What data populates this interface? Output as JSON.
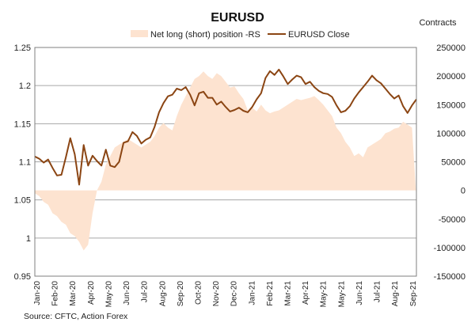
{
  "chart_data": {
    "type": "area+line",
    "title": "EURUSD",
    "right_axis_label": "Contracts",
    "source": "Source: CFTC, Action Forex",
    "legend": [
      {
        "name": "Net long (short) position -RS",
        "kind": "area",
        "color": "#fde3d0"
      },
      {
        "name": "EURUSD Close",
        "kind": "line",
        "color": "#8b4513"
      }
    ],
    "left_axis": {
      "min": 0.95,
      "max": 1.25,
      "ticks": [
        "0.95",
        "1",
        "1.05",
        "1.1",
        "1.15",
        "1.2",
        "1.25"
      ]
    },
    "right_axis": {
      "min": -150000,
      "max": 250000,
      "ticks": [
        "-150000",
        "-100000",
        "-50000",
        "0",
        "50000",
        "100000",
        "150000",
        "200000",
        "250000"
      ]
    },
    "x_labels": [
      "Jan-20",
      "Feb-20",
      "Mar-20",
      "Apr-20",
      "May-20",
      "Jun-20",
      "Jul-20",
      "Aug-20",
      "Sep-20",
      "Oct-20",
      "Nov-20",
      "Dec-20",
      "Jan-21",
      "Feb-21",
      "Mar-21",
      "Apr-21",
      "May-21",
      "May-21",
      "Jun-21",
      "Jul-21",
      "Aug-21",
      "Sep-21"
    ],
    "weeks": 87,
    "series": [
      {
        "name": "Net long (short) position -RS",
        "axis": "right",
        "values": [
          -5000,
          -10000,
          -20000,
          -25000,
          -40000,
          -45000,
          -55000,
          -60000,
          -75000,
          -80000,
          -90000,
          -105000,
          -95000,
          -40000,
          0,
          15000,
          45000,
          60000,
          75000,
          80000,
          85000,
          90000,
          85000,
          80000,
          75000,
          80000,
          85000,
          95000,
          110000,
          118000,
          110000,
          105000,
          130000,
          150000,
          165000,
          180000,
          195000,
          200000,
          208000,
          200000,
          195000,
          205000,
          200000,
          190000,
          180000,
          182000,
          170000,
          160000,
          140000,
          145000,
          138000,
          150000,
          140000,
          135000,
          138000,
          140000,
          145000,
          150000,
          155000,
          160000,
          158000,
          160000,
          162000,
          165000,
          158000,
          150000,
          140000,
          130000,
          110000,
          100000,
          85000,
          75000,
          60000,
          65000,
          58000,
          75000,
          80000,
          85000,
          90000,
          100000,
          103000,
          108000,
          110000,
          120000,
          115000,
          110000,
          -15000
        ]
      },
      {
        "name": "EURUSD Close",
        "axis": "left",
        "values": [
          1.107,
          1.104,
          1.099,
          1.103,
          1.092,
          1.082,
          1.083,
          1.106,
          1.131,
          1.11,
          1.07,
          1.122,
          1.095,
          1.108,
          1.101,
          1.095,
          1.116,
          1.095,
          1.093,
          1.1,
          1.125,
          1.127,
          1.139,
          1.134,
          1.124,
          1.129,
          1.132,
          1.146,
          1.165,
          1.177,
          1.186,
          1.188,
          1.196,
          1.194,
          1.198,
          1.188,
          1.174,
          1.19,
          1.192,
          1.184,
          1.184,
          1.175,
          1.179,
          1.172,
          1.166,
          1.168,
          1.171,
          1.167,
          1.165,
          1.172,
          1.182,
          1.19,
          1.21,
          1.219,
          1.214,
          1.221,
          1.212,
          1.202,
          1.208,
          1.213,
          1.211,
          1.202,
          1.205,
          1.198,
          1.193,
          1.19,
          1.189,
          1.185,
          1.174,
          1.165,
          1.167,
          1.173,
          1.183,
          1.191,
          1.198,
          1.205,
          1.213,
          1.207,
          1.203,
          1.196,
          1.189,
          1.183,
          1.187,
          1.173,
          1.164,
          1.174,
          1.182
        ]
      }
    ]
  }
}
